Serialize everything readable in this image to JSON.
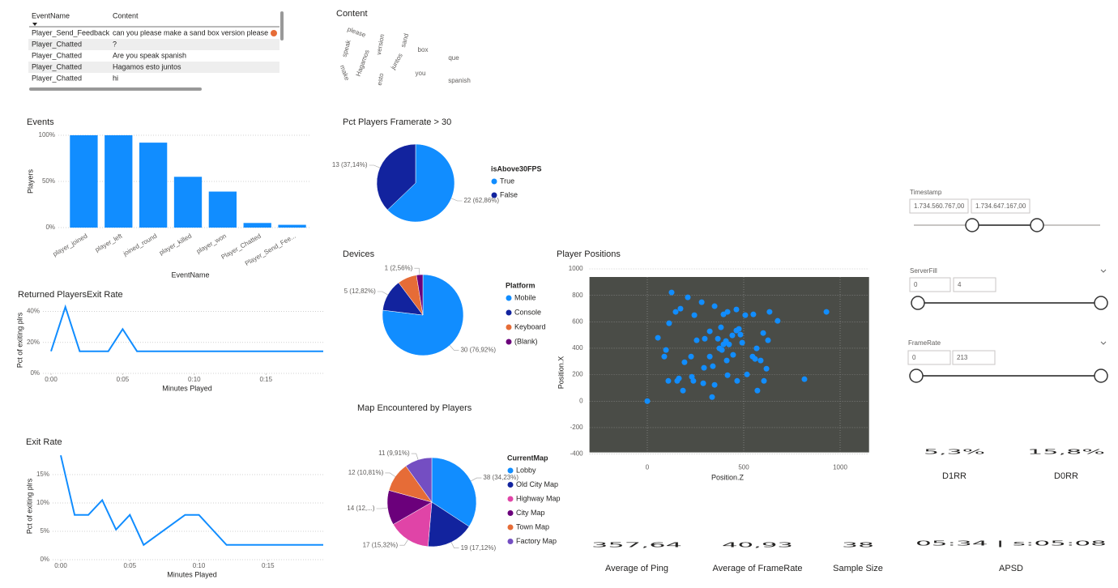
{
  "table": {
    "columns": [
      "EventName",
      "Content"
    ],
    "rows": [
      [
        "Player_Send_Feedback",
        "can you please make a sand box version please"
      ],
      [
        "Player_Chatted",
        "?"
      ],
      [
        "Player_Chatted",
        "Are you speak spanish"
      ],
      [
        "Player_Chatted",
        "Hagamos esto juntos"
      ],
      [
        "Player_Chatted",
        "hi"
      ]
    ]
  },
  "wordcloud": {
    "title": "Content",
    "words": [
      "que",
      "you",
      "please",
      "make",
      "version",
      "sand",
      "box",
      "spanish",
      "speak",
      "juntos",
      "Hagamos",
      "esto"
    ]
  },
  "chart_data": [
    {
      "type": "bar",
      "title": "Events",
      "x_label": "EventName",
      "y_label": "Players",
      "categories": [
        "player_joined",
        "player_left",
        "joined_round",
        "player_killed",
        "player_won",
        "Player_Chatted",
        "Player_Send_Fee..."
      ],
      "values": [
        100,
        100,
        92,
        55,
        39,
        5,
        3
      ],
      "color": "#118DFF",
      "ylim": [
        0,
        100
      ],
      "yticks": [
        {
          "value": 0,
          "label": "0%"
        },
        {
          "value": 50,
          "label": "50%"
        },
        {
          "value": 100,
          "label": "100%"
        }
      ],
      "grid": true
    },
    {
      "type": "line",
      "title": "Returned PlayersExit Rate",
      "x_label": "Minutes Played",
      "y_label": "Pct of exiting plrs",
      "x": [
        0,
        1,
        2,
        3,
        4,
        5,
        6,
        19
      ],
      "values": [
        14.3,
        42.9,
        14.3,
        14.3,
        14.3,
        28.6,
        14.3,
        14.3
      ],
      "color": "#118DFF",
      "xlim": [
        0,
        19
      ],
      "xticks": [
        {
          "value": 0,
          "label": "0:00"
        },
        {
          "value": 5,
          "label": "0:05"
        },
        {
          "value": 10,
          "label": "0:10"
        },
        {
          "value": 15,
          "label": "0:15"
        }
      ],
      "ylim": [
        0,
        45
      ],
      "yticks": [
        {
          "value": 0,
          "label": "0%"
        },
        {
          "value": 20,
          "label": "20%"
        },
        {
          "value": 40,
          "label": "40%"
        }
      ],
      "grid": true
    },
    {
      "type": "line",
      "title": "Exit Rate",
      "x_label": "Minutes Played",
      "y_label": "Pct of exiting plrs",
      "x": [
        0,
        1,
        2,
        3,
        4,
        5,
        6,
        9,
        10,
        12,
        19
      ],
      "values": [
        18.4,
        7.9,
        7.9,
        10.5,
        5.3,
        7.9,
        2.6,
        7.9,
        7.9,
        2.6,
        2.6
      ],
      "color": "#118DFF",
      "xlim": [
        0,
        19
      ],
      "xticks": [
        {
          "value": 0,
          "label": "0:00"
        },
        {
          "value": 5,
          "label": "0:05"
        },
        {
          "value": 10,
          "label": "0:10"
        },
        {
          "value": 15,
          "label": "0:15"
        }
      ],
      "ylim": [
        0,
        19
      ],
      "yticks": [
        {
          "value": 0,
          "label": "0%"
        },
        {
          "value": 5,
          "label": "5%"
        },
        {
          "value": 10,
          "label": "10%"
        },
        {
          "value": 15,
          "label": "15%"
        }
      ],
      "grid": true
    },
    {
      "type": "pie",
      "title": "Pct Players Framerate > 30",
      "legend_title": "isAbove30FPS",
      "categories": [
        "True",
        "False"
      ],
      "values": [
        22,
        13
      ],
      "value_labels": [
        "22 (62,86%)",
        "13 (37,14%)"
      ],
      "colors": [
        "#118DFF",
        "#12239E"
      ]
    },
    {
      "type": "pie",
      "title": "Devices",
      "legend_title": "Platform",
      "categories": [
        "Mobile",
        "Console",
        "Keyboard",
        "(Blank)"
      ],
      "values": [
        30,
        5,
        3,
        1
      ],
      "value_labels": [
        "30 (76,92%)",
        "5 (12,82%)",
        null,
        "1 (2,56%)"
      ],
      "colors": [
        "#118DFF",
        "#12239E",
        "#E66C37",
        "#6B007B"
      ]
    },
    {
      "type": "pie",
      "title": "Map Encountered by Players",
      "legend_title": "CurrentMap",
      "categories": [
        "Lobby",
        "Old City Map",
        "Highway Map",
        "City Map",
        "Town Map",
        "Factory Map"
      ],
      "values": [
        38,
        19,
        17,
        14,
        12,
        11
      ],
      "value_labels": [
        "38 (34,23%)",
        "19 (17,12%)",
        "17 (15,32%)",
        "14 (12,...)",
        "12 (10,81%)",
        "11 (9,91%)"
      ],
      "colors": [
        "#118DFF",
        "#12239E",
        "#E044A7",
        "#6B007B",
        "#E66C37",
        "#744EC2"
      ]
    },
    {
      "type": "scatter",
      "title": "Player Positions",
      "x_label": "Position.Z",
      "y_label": "Position.X",
      "color": "#118DFF",
      "x": [
        0,
        929,
        88,
        97,
        55,
        113,
        147,
        172,
        210,
        126,
        244,
        282,
        256,
        298,
        324,
        227,
        193,
        164,
        185,
        231,
        290,
        349,
        395,
        416,
        382,
        366,
        374,
        387,
        395,
        408,
        424,
        441,
        462,
        475,
        483,
        492,
        462,
        508,
        550,
        601,
        634,
        676,
        567,
        546,
        559,
        588,
        618,
        605,
        571,
        517,
        466,
        416,
        349,
        336,
        294,
        412,
        445,
        626,
        815,
        324,
        340,
        239,
        155,
        109
      ],
      "y": [
        0,
        675,
        337,
        387,
        479,
        589,
        675,
        699,
        785,
        822,
        650,
        748,
        460,
        472,
        528,
        337,
        294,
        172,
        80,
        184,
        135,
        718,
        656,
        675,
        558,
        472,
        399,
        387,
        429,
        454,
        429,
        497,
        534,
        546,
        503,
        442,
        693,
        650,
        656,
        515,
        675,
        607,
        399,
        337,
        319,
        307,
        245,
        153,
        80,
        202,
        153,
        196,
        123,
        31,
        252,
        307,
        350,
        460,
        166,
        337,
        264,
        153,
        153,
        153
      ],
      "xlim": [
        -300,
        1150
      ],
      "xticks": [
        0,
        500,
        1000
      ],
      "ylim": [
        -400,
        1000
      ],
      "yticks": [
        -400,
        -200,
        0,
        200,
        400,
        600,
        800,
        1000
      ],
      "grid": true
    }
  ],
  "slicers": [
    {
      "title": "Timestamp",
      "from": "1.734.560.767,00",
      "to": "1.734.647.167,00"
    },
    {
      "title": "ServerFill",
      "from": "0",
      "to": "4"
    },
    {
      "title": "FrameRate",
      "from": "0",
      "to": "213"
    }
  ],
  "cards": [
    {
      "value": "5,3%",
      "label": "D1RR"
    },
    {
      "value": "15,8%",
      "label": "D0RR"
    },
    {
      "value": "357,64",
      "label": "Average of Ping"
    },
    {
      "value": "40,93",
      "label": "Average of FrameRate"
    },
    {
      "value": "38",
      "label": "Sample Size"
    },
    {
      "value": "05:34 | s:05:08",
      "label": "APSD"
    }
  ]
}
